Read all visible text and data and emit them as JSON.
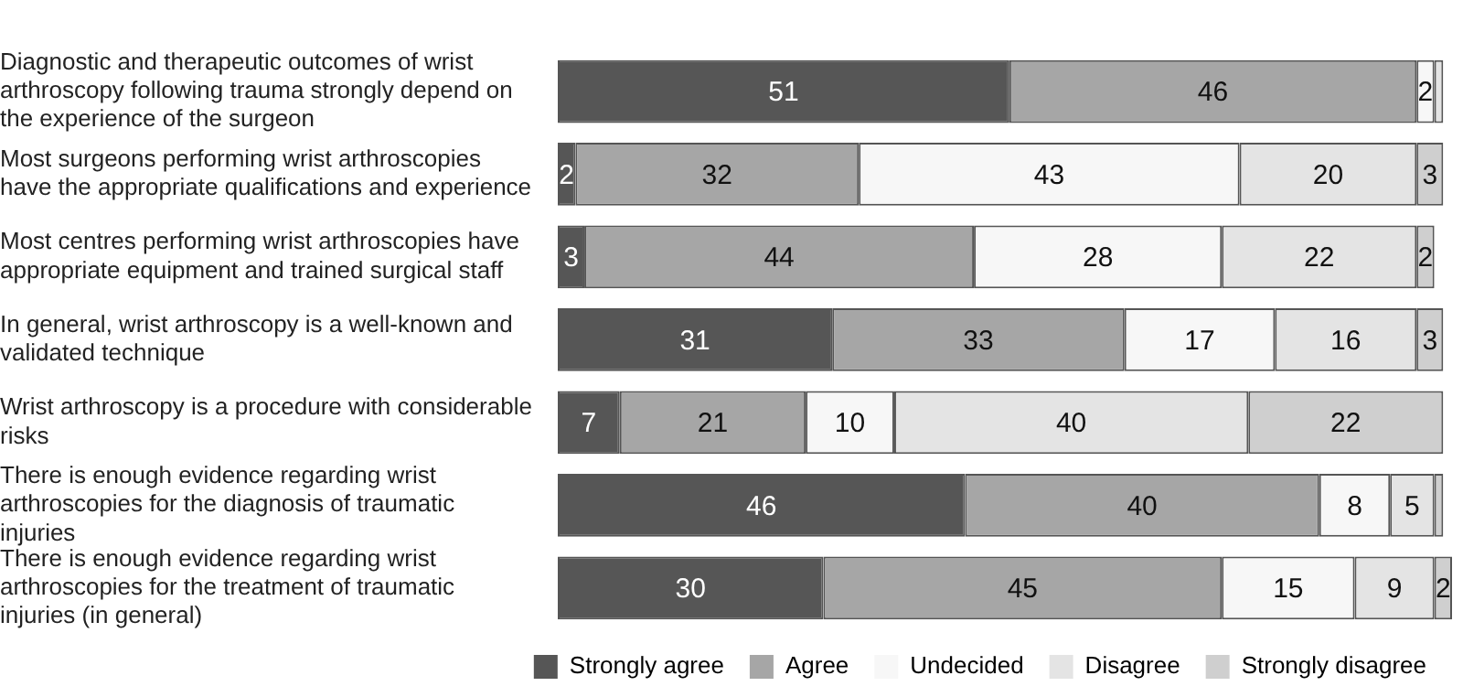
{
  "chart_data": {
    "type": "bar",
    "orientation": "horizontal",
    "stacked": true,
    "categories": [
      "Diagnostic and therapeutic outcomes of wrist arthroscopy following trauma strongly depend on the experience of the surgeon",
      "Most surgeons performing wrist arthroscopies have the appropriate qualifications and experience",
      "Most centres performing wrist arthroscopies have appropriate equipment and trained surgical staff",
      "In general, wrist arthroscopy is a well-known and validated technique",
      "Wrist arthroscopy is a procedure with considerable risks",
      "There is enough evidence regarding wrist arthroscopies for the diagnosis of traumatic injuries",
      "There is enough evidence regarding wrist arthroscopies for the treatment of traumatic injuries (in general)"
    ],
    "series": [
      {
        "name": "Strongly agree",
        "color": "#565656",
        "values": [
          51,
          2,
          3,
          31,
          7,
          46,
          30
        ],
        "value_labels": [
          "51",
          "2",
          "3",
          "31",
          "7",
          "46",
          "30"
        ]
      },
      {
        "name": "Agree",
        "color": "#a6a6a6",
        "values": [
          46,
          32,
          44,
          33,
          21,
          40,
          45
        ],
        "value_labels": [
          "46",
          "32",
          "44",
          "33",
          "21",
          "40",
          "45"
        ]
      },
      {
        "name": "Undecided",
        "color": "#f7f7f7",
        "values": [
          2,
          43,
          28,
          17,
          10,
          8,
          15
        ],
        "value_labels": [
          "2",
          "43",
          "28",
          "17",
          "10",
          "8",
          "15"
        ]
      },
      {
        "name": "Disagree",
        "color": "#e4e4e4",
        "values": [
          1,
          20,
          22,
          16,
          40,
          5,
          9
        ],
        "value_labels": [
          null,
          "20",
          "22",
          "16",
          "40",
          "5",
          "9"
        ]
      },
      {
        "name": "Strongly disagree",
        "color": "#cfcfcf",
        "values": [
          0,
          3,
          2,
          3,
          22,
          1,
          2
        ],
        "value_labels": [
          null,
          "3",
          "2",
          "3",
          "22",
          null,
          "2"
        ]
      }
    ],
    "xlim": [
      0,
      101
    ],
    "tick_labels": "y",
    "grid": false,
    "legend": "bottom right"
  }
}
